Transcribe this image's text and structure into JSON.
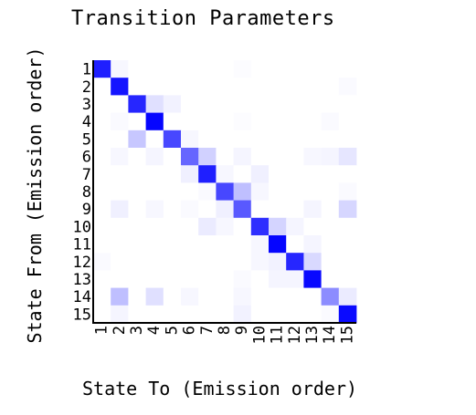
{
  "chart_data": {
    "type": "heatmap",
    "title": "Transition Parameters",
    "xlabel": "State To (Emission order)",
    "ylabel": "State From (Emission order)",
    "x_tick_labels": [
      "1",
      "2",
      "3",
      "4",
      "5",
      "6",
      "7",
      "8",
      "9",
      "10",
      "11",
      "12",
      "13",
      "14",
      "15"
    ],
    "y_tick_labels": [
      "1",
      "2",
      "3",
      "4",
      "5",
      "6",
      "7",
      "8",
      "9",
      "10",
      "11",
      "12",
      "13",
      "14",
      "15"
    ],
    "color_scale": {
      "low": "#ffffff",
      "high": "#0000ff"
    },
    "value_range": [
      0,
      1
    ],
    "matrix": [
      [
        0.88,
        0.03,
        0,
        0,
        0,
        0,
        0,
        0,
        0.01,
        0,
        0,
        0,
        0,
        0,
        0
      ],
      [
        0,
        0.92,
        0,
        0,
        0,
        0,
        0,
        0,
        0,
        0,
        0,
        0,
        0,
        0,
        0.02
      ],
      [
        0,
        0,
        0.85,
        0.12,
        0.05,
        0,
        0,
        0,
        0,
        0,
        0,
        0,
        0,
        0,
        0
      ],
      [
        0,
        0.02,
        0,
        0.98,
        0,
        0,
        0,
        0,
        0.01,
        0,
        0,
        0,
        0,
        0.02,
        0
      ],
      [
        0,
        0,
        0.22,
        0,
        0.72,
        0.03,
        0,
        0,
        0,
        0,
        0,
        0,
        0,
        0,
        0
      ],
      [
        0,
        0.03,
        0,
        0.04,
        0,
        0.6,
        0.18,
        0,
        0.04,
        0,
        0,
        0,
        0.03,
        0.04,
        0.1
      ],
      [
        0,
        0,
        0,
        0,
        0,
        0.06,
        0.88,
        0.03,
        0,
        0.06,
        0,
        0,
        0,
        0,
        0
      ],
      [
        0,
        0,
        0,
        0,
        0,
        0,
        0.02,
        0.72,
        0.25,
        0.03,
        0,
        0,
        0,
        0,
        0.02
      ],
      [
        0,
        0.06,
        0,
        0.03,
        0,
        0.02,
        0,
        0.06,
        0.65,
        0,
        0,
        0,
        0.04,
        0,
        0.16
      ],
      [
        0,
        0,
        0,
        0,
        0,
        0,
        0.08,
        0.03,
        0,
        0.82,
        0.17,
        0.04,
        0,
        0,
        0
      ],
      [
        0,
        0,
        0,
        0,
        0,
        0,
        0,
        0,
        0,
        0.03,
        0.98,
        0,
        0.04,
        0,
        0
      ],
      [
        0.02,
        0,
        0,
        0,
        0,
        0,
        0,
        0,
        0,
        0.03,
        0.05,
        0.85,
        0.15,
        0,
        0
      ],
      [
        0,
        0,
        0,
        0,
        0,
        0,
        0,
        0,
        0.02,
        0,
        0.04,
        0.04,
        0.97,
        0,
        0
      ],
      [
        0,
        0.25,
        0,
        0.12,
        0,
        0.03,
        0,
        0,
        0.03,
        0,
        0,
        0,
        0,
        0.45,
        0.08
      ],
      [
        0,
        0.04,
        0,
        0,
        0,
        0,
        0,
        0,
        0.05,
        0,
        0,
        0,
        0,
        0.02,
        0.96
      ]
    ]
  }
}
